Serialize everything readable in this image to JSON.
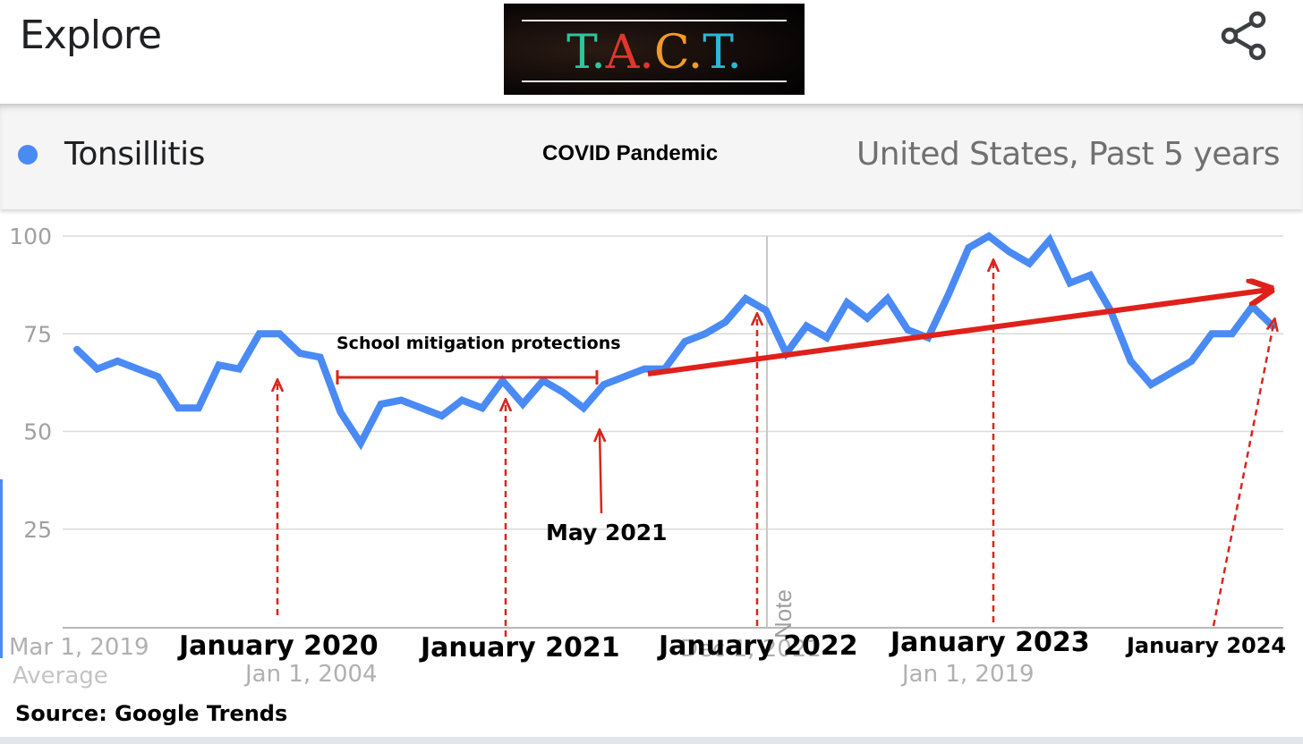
{
  "header": {
    "title": "Explore",
    "logo_letters": [
      "T",
      ".",
      "A",
      ".",
      "C",
      ".",
      "T",
      "."
    ],
    "logo_colors": [
      "#2ec4a0",
      "#2ec4a0",
      "#e0362c",
      "#e0362c",
      "#f39a2b",
      "#f39a2b",
      "#2bb8d6",
      "#2bb8d6"
    ],
    "share_icon": "share-icon"
  },
  "legend": {
    "term": "Tonsillitis",
    "term_color": "#4a8af4",
    "center_label": "COVID Pandemic",
    "region": "United States, Past 5 years"
  },
  "chart_data": {
    "type": "line",
    "ylim": [
      0,
      100
    ],
    "y_ticks": [
      "100",
      "75",
      "50",
      "25"
    ],
    "note_label": "Note",
    "x_tick_labels": [
      "Mar 1, 2019",
      "Jan 1, 2004",
      "Dec 1, 2021",
      "Jan 1, 2019"
    ],
    "average_label": "Average",
    "series": [
      {
        "color": "#4a8af4",
        "values": [
          71,
          66,
          68,
          66,
          64,
          56,
          56,
          67,
          66,
          75,
          75,
          70,
          69,
          55,
          47,
          57,
          58,
          56,
          54,
          58,
          56,
          63,
          57,
          63,
          60,
          56,
          62,
          64,
          66,
          66,
          73,
          75,
          78,
          84,
          81,
          70,
          77,
          74,
          83,
          79,
          84,
          76,
          74,
          85,
          97,
          100,
          96,
          93,
          99,
          88,
          90,
          81,
          68,
          62,
          65,
          68,
          75,
          75,
          82,
          77
        ]
      }
    ],
    "trend_color": "#e0201a",
    "annotations": {
      "school_span": "School  mitigation  protections",
      "may_2021": "May 2021",
      "years": [
        "January  2020",
        "January  2021",
        "January 2022",
        "January  2023",
        "January  2024"
      ]
    }
  },
  "footer": {
    "source": "Source: Google Trends"
  }
}
